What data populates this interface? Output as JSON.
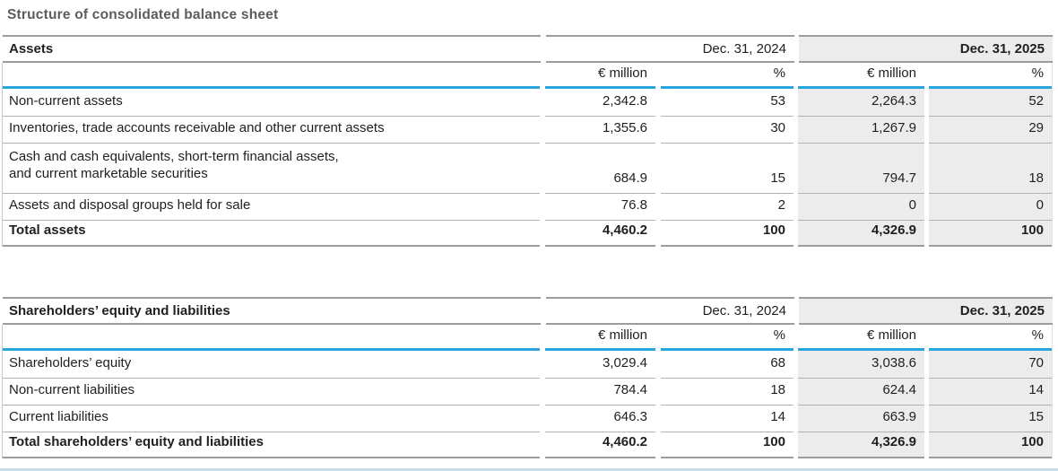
{
  "page": {
    "title": "Structure of consolidated balance sheet"
  },
  "colors": {
    "accent_blue": "#29a6de",
    "highlight_bg": "#ececec",
    "border_strong": "#9c9c9c",
    "border_row": "#b2b2b2",
    "border_side": "#c8c8c8",
    "title_color": "#5c5c5c",
    "text_color": "#1f1f1f",
    "bottom_line": "#cadbe6"
  },
  "columns": {
    "year_prev": "Dec. 31, 2024",
    "year_curr": "Dec. 31, 2025",
    "unit_label": "€ million",
    "pct_label": "%"
  },
  "tables": [
    {
      "title": "Assets",
      "rows": [
        {
          "label": "Non-current assets",
          "prev_eur": "2,342.8",
          "prev_pct": "53",
          "curr_eur": "2,264.3",
          "curr_pct": "52"
        },
        {
          "label": "Inventories, trade accounts receivable and other current assets",
          "prev_eur": "1,355.6",
          "prev_pct": "30",
          "curr_eur": "1,267.9",
          "curr_pct": "29"
        },
        {
          "label": "Cash and cash equivalents, short-term financial assets,",
          "label2": "and current marketable securities",
          "prev_eur": "684.9",
          "prev_pct": "15",
          "curr_eur": "794.7",
          "curr_pct": "18"
        },
        {
          "label": "Assets and disposal groups held for sale",
          "prev_eur": "76.8",
          "prev_pct": "2",
          "curr_eur": "0",
          "curr_pct": "0"
        },
        {
          "label": "Total assets",
          "prev_eur": "4,460.2",
          "prev_pct": "100",
          "curr_eur": "4,326.9",
          "curr_pct": "100"
        }
      ]
    },
    {
      "title": "Shareholders’ equity and liabilities",
      "rows": [
        {
          "label": "Shareholders’ equity",
          "prev_eur": "3,029.4",
          "prev_pct": "68",
          "curr_eur": "3,038.6",
          "curr_pct": "70"
        },
        {
          "label": "Non-current liabilities",
          "prev_eur": "784.4",
          "prev_pct": "18",
          "curr_eur": "624.4",
          "curr_pct": "14"
        },
        {
          "label": "Current liabilities",
          "prev_eur": "646.3",
          "prev_pct": "14",
          "curr_eur": "663.9",
          "curr_pct": "15"
        },
        {
          "label": "Total shareholders’ equity and liabilities",
          "prev_eur": "4,460.2",
          "prev_pct": "100",
          "curr_eur": "4,326.9",
          "curr_pct": "100"
        }
      ]
    }
  ]
}
